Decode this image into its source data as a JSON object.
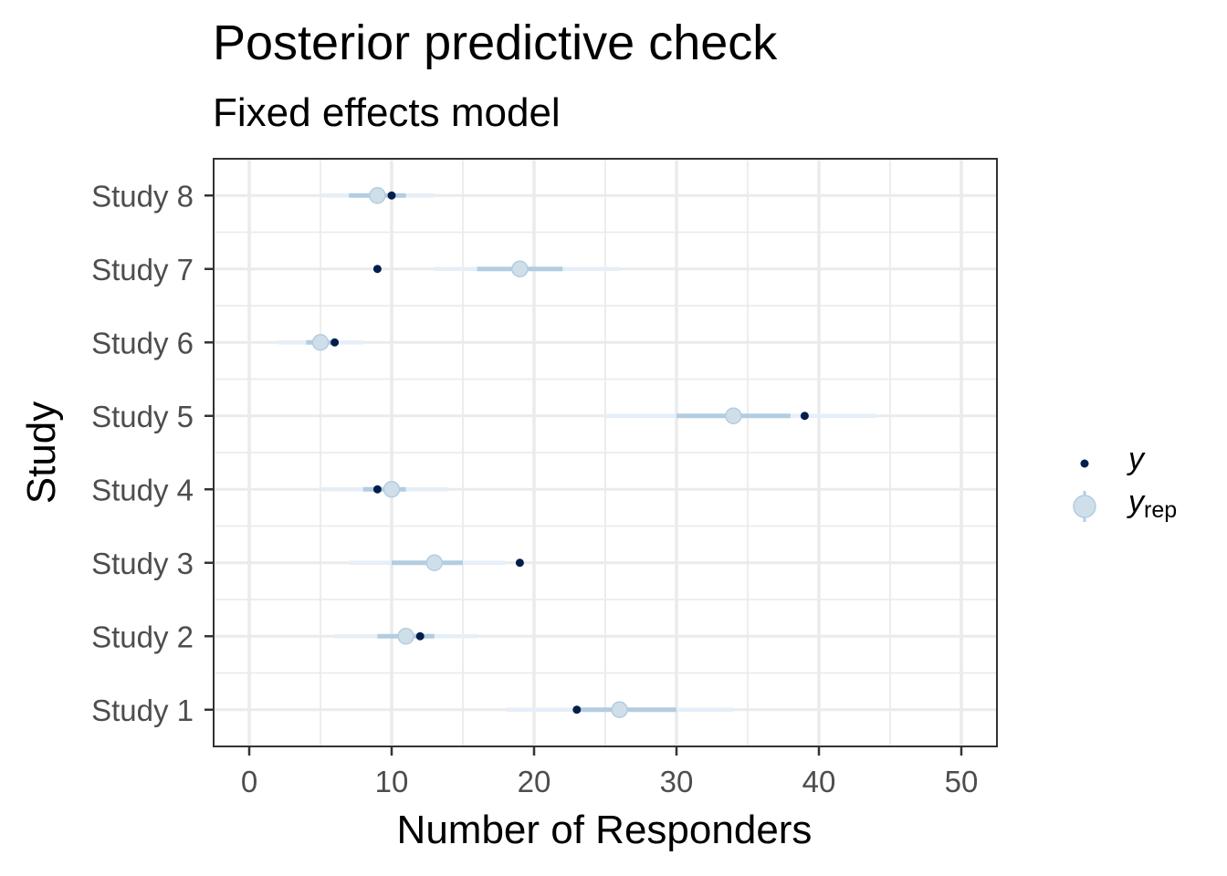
{
  "chart_data": {
    "type": "scatter",
    "title": "Posterior predictive check",
    "subtitle": "Fixed effects model",
    "xlabel": "Number of Responders",
    "ylabel": "Study",
    "xlim": [
      -2.5,
      52.5
    ],
    "xticks": [
      0,
      10,
      20,
      30,
      40,
      50
    ],
    "grid": true,
    "legend_position": "right",
    "categories": [
      "Study 1",
      "Study 2",
      "Study 3",
      "Study 4",
      "Study 5",
      "Study 6",
      "Study 7",
      "Study 8"
    ],
    "series": [
      {
        "name": "y",
        "color": "#011f4b",
        "values": [
          23,
          12,
          19,
          9,
          39,
          6,
          9,
          10
        ]
      },
      {
        "name": "y_rep",
        "color": "#cfdfea",
        "median": [
          26,
          11,
          13,
          10,
          34,
          5,
          19,
          9
        ],
        "inner_low": [
          23,
          9,
          10,
          8,
          30,
          4,
          16,
          7
        ],
        "inner_high": [
          30,
          13,
          15,
          11,
          38,
          6,
          22,
          11
        ],
        "outer_low": [
          18,
          6,
          7,
          5,
          25,
          2,
          13,
          5
        ],
        "outer_high": [
          34,
          16,
          18,
          14,
          44,
          8,
          26,
          13
        ]
      }
    ]
  },
  "legend": {
    "y_label": "y",
    "yrep_label": "y",
    "yrep_sub": "rep"
  },
  "colors": {
    "y_point": "#011f4b",
    "yrep_point": "#cfdfea",
    "inner_interval": "#b3cde0",
    "outer_interval": "#e6eef7",
    "grid": "#ebebeb",
    "panel_border": "#333333"
  }
}
